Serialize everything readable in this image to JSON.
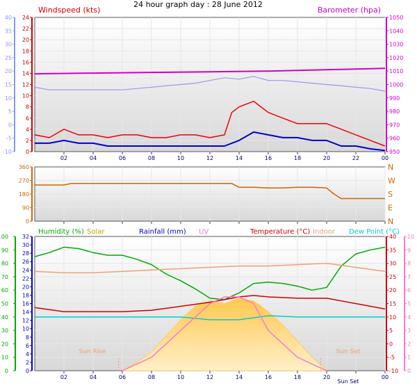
{
  "title": "24 hour graph day : 28 June 2012",
  "x_tick_labels": [
    "02",
    "04",
    "06",
    "08",
    "10",
    "12",
    "14",
    "16",
    "18",
    "20",
    "22",
    "00"
  ],
  "panels": [
    {
      "id": "wind_baro",
      "labels": {
        "windspeed": "Windspeed (kts)",
        "barometer": "Barometer (hpa)"
      },
      "left_outer_axis": {
        "ticks": [
          40,
          35,
          30,
          25,
          20,
          15,
          10,
          5,
          0,
          -5,
          -10
        ]
      },
      "left_inner_axis": {
        "ticks": [
          24,
          22,
          20,
          18,
          16,
          14,
          12,
          10,
          8,
          6,
          4,
          2,
          0
        ]
      },
      "right_axis": {
        "ticks": [
          1050,
          1040,
          1030,
          1020,
          1010,
          1000,
          990,
          980,
          970,
          960,
          950
        ]
      }
    },
    {
      "id": "direction",
      "left_axis": {
        "ticks": [
          360,
          270,
          180,
          90,
          0
        ]
      },
      "right_axis": {
        "ticks": [
          "N",
          "W",
          "S",
          "E",
          "N"
        ]
      }
    },
    {
      "id": "weather",
      "legend": [
        {
          "text": "Humidity (%)",
          "color": "#00aa00"
        },
        {
          "text": "Solar",
          "color": "#c8a000"
        },
        {
          "text": "Rainfall (mm)",
          "color": "#0000cc"
        },
        {
          "text": "UV",
          "color": "#ff77cc"
        },
        {
          "text": "Temperature (°C)",
          "color": "#cc0000"
        },
        {
          "text": "Indoor",
          "color": "#f0a070"
        },
        {
          "text": "Dew Point (°C)",
          "color": "#00cccc"
        }
      ],
      "axis_humidity": {
        "ticks": [
          100,
          90,
          80,
          70,
          60,
          50,
          40,
          30,
          20,
          10,
          0
        ]
      },
      "axis_rain": {
        "ticks": [
          32,
          30,
          28,
          26,
          24,
          22,
          20,
          18,
          16,
          14,
          12,
          10,
          8,
          6,
          4,
          2,
          0
        ]
      },
      "axis_temp": {
        "ticks": [
          40,
          35,
          30,
          25,
          20,
          15,
          10,
          5,
          0,
          -5,
          -10
        ]
      },
      "axis_uv": {
        "ticks": [
          10,
          9,
          8,
          7,
          6,
          5,
          4,
          3,
          2,
          1,
          0
        ]
      },
      "annotations": {
        "sun_rise": "Sun Rise",
        "sun_set": "Sun Set",
        "sun_set_tick": "Sun Set"
      }
    }
  ],
  "chart_data": [
    {
      "type": "line",
      "title": "Windspeed / Barometer",
      "x_range_hours": [
        0,
        24
      ],
      "wind_ylim": [
        0,
        24
      ],
      "baro_ylim": [
        950,
        1050
      ],
      "series": [
        {
          "name": "Windspeed (kts)",
          "color": "#ee0000",
          "x": [
            0,
            1,
            2,
            3,
            4,
            5,
            6,
            7,
            8,
            9,
            10,
            11,
            12,
            13,
            13.5,
            14,
            15,
            16,
            17,
            18,
            19,
            20,
            21,
            22,
            23,
            24
          ],
          "values": [
            3,
            2.5,
            4,
            3,
            3,
            2.5,
            3,
            3,
            2.5,
            2.5,
            3,
            3,
            2.5,
            3,
            7,
            8,
            9,
            7,
            6,
            5,
            5,
            5,
            4,
            3,
            2,
            1
          ]
        },
        {
          "name": "Average windspeed",
          "color": "#0000cc",
          "x": [
            0,
            1,
            2,
            3,
            4,
            5,
            6,
            7,
            8,
            9,
            10,
            11,
            12,
            13,
            14,
            15,
            16,
            17,
            18,
            19,
            20,
            21,
            22,
            23,
            24
          ],
          "values": [
            1.5,
            1.5,
            2,
            1.5,
            1.5,
            1,
            1,
            1,
            1,
            1,
            1,
            1,
            1,
            1,
            2,
            3.5,
            3,
            2.5,
            2.5,
            2,
            2,
            1,
            1,
            0.5,
            0.2
          ]
        },
        {
          "name": "Gust envelope",
          "color": "#9999ee",
          "x": [
            0,
            1,
            2,
            3,
            4,
            5,
            6,
            7,
            8,
            9,
            10,
            11,
            12,
            13,
            14,
            15,
            16,
            17,
            18,
            19,
            20,
            21,
            22,
            23,
            24
          ],
          "values": [
            14,
            13,
            13,
            13,
            13,
            13,
            13,
            13.5,
            14,
            14.5,
            15,
            15.5,
            16.5,
            17.5,
            17,
            18,
            16.5,
            16.5,
            16,
            15.5,
            15,
            14.5,
            14,
            13.5,
            12.5
          ]
        },
        {
          "name": "Barometer (hpa)",
          "color": "#cc00cc",
          "x": [
            0,
            4,
            8,
            12,
            16,
            20,
            24
          ],
          "values": [
            1008,
            1008.5,
            1009,
            1009.5,
            1010,
            1011,
            1012
          ]
        }
      ]
    },
    {
      "type": "line",
      "title": "Wind direction",
      "ylim": [
        0,
        360
      ],
      "series": [
        {
          "name": "Direction",
          "color": "#cc6600",
          "x": [
            0,
            2,
            2.5,
            4,
            6,
            8,
            10,
            12,
            13.5,
            14,
            15,
            16,
            17,
            18,
            19,
            20,
            20.5,
            21,
            22,
            23,
            24
          ],
          "values": [
            240,
            240,
            250,
            250,
            250,
            250,
            250,
            250,
            250,
            225,
            225,
            220,
            220,
            225,
            225,
            220,
            180,
            150,
            150,
            150,
            150
          ]
        }
      ]
    },
    {
      "type": "line",
      "title": "Weather",
      "series": [
        {
          "name": "Humidity (%)",
          "color": "#00aa00",
          "x": [
            0,
            1,
            2,
            3,
            4,
            5,
            6,
            7,
            8,
            9,
            10,
            11,
            12,
            13,
            14,
            15,
            16,
            17,
            18,
            19,
            20,
            21,
            22,
            23,
            24
          ],
          "values": [
            85,
            88,
            92,
            91,
            88,
            86,
            86,
            83,
            79,
            72,
            67,
            61,
            54,
            53,
            58,
            65,
            66,
            65,
            63,
            60,
            62,
            78,
            87,
            90,
            92
          ]
        },
        {
          "name": "Temperature (°C)",
          "color": "#cc0000",
          "x": [
            0,
            2,
            4,
            6,
            8,
            10,
            12,
            14,
            15,
            16,
            18,
            20,
            22,
            24
          ],
          "values": [
            13.5,
            12,
            12,
            12,
            12.5,
            14,
            15.5,
            17.5,
            18,
            17.5,
            17,
            17,
            15,
            13
          ]
        },
        {
          "name": "Indoor",
          "color": "#f0a070",
          "x": [
            0,
            2,
            4,
            6,
            8,
            10,
            12,
            14,
            16,
            18,
            20,
            22,
            24
          ],
          "values": [
            27,
            26.5,
            26.5,
            27,
            27.5,
            28,
            28.5,
            29,
            29,
            29.5,
            30,
            28.5,
            27
          ]
        },
        {
          "name": "Dew Point (°C)",
          "color": "#00cccc",
          "x": [
            0,
            2,
            4,
            6,
            8,
            10,
            12,
            14,
            16,
            18,
            20,
            22,
            24
          ],
          "values": [
            10,
            10,
            10,
            10,
            10,
            10,
            9,
            9,
            10.5,
            10,
            10,
            10,
            10
          ]
        },
        {
          "name": "UV",
          "color": "#ff77cc",
          "x": [
            6,
            7,
            8,
            9,
            10,
            11,
            12,
            13,
            14,
            15,
            16,
            17,
            18,
            19,
            20
          ],
          "values": [
            0,
            0.5,
            1,
            2,
            3,
            4,
            5,
            5.5,
            5.5,
            5,
            3,
            2,
            1,
            0.5,
            0
          ]
        },
        {
          "name": "Solar",
          "color": "#ffd166",
          "x": [
            6,
            7,
            8,
            9,
            10,
            11,
            12,
            13,
            14,
            15,
            16,
            17,
            18,
            19,
            20
          ],
          "values": [
            0,
            30,
            70,
            130,
            190,
            240,
            260,
            250,
            270,
            260,
            220,
            170,
            110,
            50,
            0
          ]
        }
      ]
    }
  ]
}
